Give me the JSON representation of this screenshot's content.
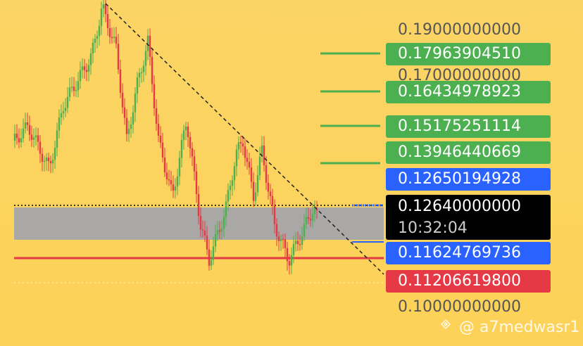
{
  "price_labels": [
    {
      "text": "0.19000000000",
      "kind": "axis"
    },
    {
      "text": "0.17963904510",
      "kind": "take-profit"
    },
    {
      "text": "0.17000000000",
      "kind": "axis"
    },
    {
      "text": "0.16434978923",
      "kind": "take-profit"
    },
    {
      "text": "0.15175251114",
      "kind": "take-profit"
    },
    {
      "text": "0.13946440669",
      "kind": "take-profit"
    },
    {
      "text": "0.12650194928",
      "kind": "blue"
    },
    {
      "text": "0.12640000000",
      "kind": "current",
      "time": "10:32:04"
    },
    {
      "text": "0.11624769736",
      "kind": "blue"
    },
    {
      "text": "0.11206619800",
      "kind": "red"
    },
    {
      "text": "0.10000000000",
      "kind": "axis"
    }
  ],
  "watermark": "@ a7medwasr1"
}
